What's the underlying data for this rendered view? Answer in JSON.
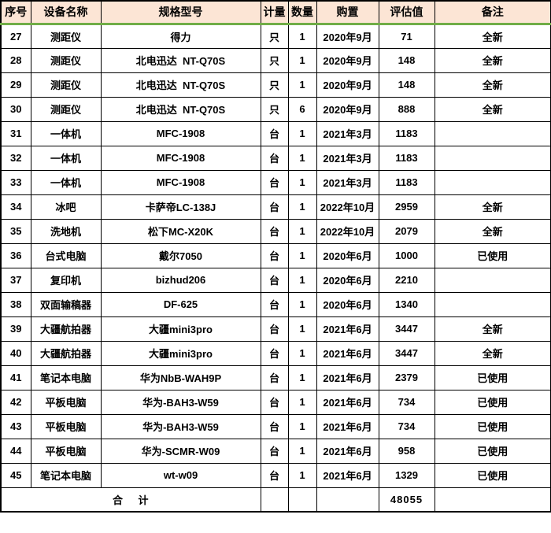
{
  "table": {
    "columns": [
      {
        "key": "index",
        "label": "序号"
      },
      {
        "key": "name",
        "label": "设备名称"
      },
      {
        "key": "model",
        "label": "规格型号"
      },
      {
        "key": "unit",
        "label": "计量"
      },
      {
        "key": "qty",
        "label": "数量"
      },
      {
        "key": "purchase",
        "label": "购置"
      },
      {
        "key": "value",
        "label": "评估值"
      },
      {
        "key": "note",
        "label": "备注"
      }
    ],
    "rows": [
      [
        "27",
        "测距仪",
        "得力",
        "只",
        "1",
        "2020年9月",
        "71",
        "全新"
      ],
      [
        "28",
        "测距仪",
        "北电迅达  NT-Q70S",
        "只",
        "1",
        "2020年9月",
        "148",
        "全新"
      ],
      [
        "29",
        "测距仪",
        "北电迅达  NT-Q70S",
        "只",
        "1",
        "2020年9月",
        "148",
        "全新"
      ],
      [
        "30",
        "测距仪",
        "北电迅达  NT-Q70S",
        "只",
        "6",
        "2020年9月",
        "888",
        "全新"
      ],
      [
        "31",
        "一体机",
        "MFC-1908",
        "台",
        "1",
        "2021年3月",
        "1183",
        ""
      ],
      [
        "32",
        "一体机",
        "MFC-1908",
        "台",
        "1",
        "2021年3月",
        "1183",
        ""
      ],
      [
        "33",
        "一体机",
        "MFC-1908",
        "台",
        "1",
        "2021年3月",
        "1183",
        ""
      ],
      [
        "34",
        "冰吧",
        "卡萨帝LC-138J",
        "台",
        "1",
        "2022年10月",
        "2959",
        "全新"
      ],
      [
        "35",
        "洗地机",
        "松下MC-X20K",
        "台",
        "1",
        "2022年10月",
        "2079",
        "全新"
      ],
      [
        "36",
        "台式电脑",
        "戴尔7050",
        "台",
        "1",
        "2020年6月",
        "1000",
        "已使用"
      ],
      [
        "37",
        "复印机",
        "bizhud206",
        "台",
        "1",
        "2020年6月",
        "2210",
        ""
      ],
      [
        "38",
        "双面输稿器",
        "DF-625",
        "台",
        "1",
        "2020年6月",
        "1340",
        ""
      ],
      [
        "39",
        "大疆航拍器",
        "大疆mini3pro",
        "台",
        "1",
        "2021年6月",
        "3447",
        "全新"
      ],
      [
        "40",
        "大疆航拍器",
        "大疆mini3pro",
        "台",
        "1",
        "2021年6月",
        "3447",
        "全新"
      ],
      [
        "41",
        "笔记本电脑",
        "华为NbB-WAH9P",
        "台",
        "1",
        "2021年6月",
        "2379",
        "已使用"
      ],
      [
        "42",
        "平板电脑",
        "华为-BAH3-W59",
        "台",
        "1",
        "2021年6月",
        "734",
        "已使用"
      ],
      [
        "43",
        "平板电脑",
        "华为-BAH3-W59",
        "台",
        "1",
        "2021年6月",
        "734",
        "已使用"
      ],
      [
        "44",
        "平板电脑",
        "华为-SCMR-W09",
        "台",
        "1",
        "2021年6月",
        "958",
        "已使用"
      ],
      [
        "45",
        "笔记本电脑",
        "wt-w09",
        "台",
        "1",
        "2021年6月",
        "1329",
        "已使用"
      ]
    ],
    "total": {
      "label": "合    计",
      "unit": "",
      "qty": "",
      "purchase": "",
      "value": "48055",
      "note": ""
    },
    "colors": {
      "header_bg": "#fce5d5",
      "header_underline_green": "#70ad47",
      "grid_border": "#000000",
      "text": "#000000"
    }
  }
}
